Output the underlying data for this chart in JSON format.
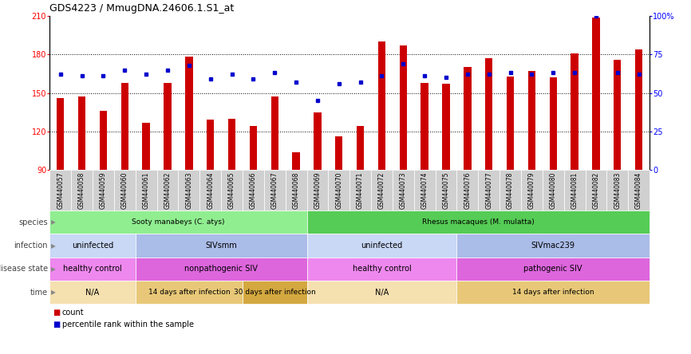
{
  "title": "GDS4223 / MmugDNA.24606.1.S1_at",
  "samples": [
    "GSM440057",
    "GSM440058",
    "GSM440059",
    "GSM440060",
    "GSM440061",
    "GSM440062",
    "GSM440063",
    "GSM440064",
    "GSM440065",
    "GSM440066",
    "GSM440067",
    "GSM440068",
    "GSM440069",
    "GSM440070",
    "GSM440071",
    "GSM440072",
    "GSM440073",
    "GSM440074",
    "GSM440075",
    "GSM440076",
    "GSM440077",
    "GSM440078",
    "GSM440079",
    "GSM440080",
    "GSM440081",
    "GSM440082",
    "GSM440083",
    "GSM440084"
  ],
  "counts": [
    146,
    147,
    136,
    158,
    127,
    158,
    178,
    129,
    130,
    124,
    147,
    104,
    135,
    116,
    124,
    190,
    187,
    158,
    157,
    170,
    177,
    163,
    167,
    162,
    181,
    209,
    176,
    184
  ],
  "percentiles": [
    62,
    61,
    61,
    65,
    62,
    65,
    68,
    59,
    62,
    59,
    63,
    57,
    45,
    56,
    57,
    61,
    69,
    61,
    60,
    62,
    62,
    63,
    62,
    63,
    63,
    100,
    63,
    62
  ],
  "ymin": 90,
  "ymax": 210,
  "yticks_left": [
    90,
    120,
    150,
    180,
    210
  ],
  "bar_color": "#cc0000",
  "dot_color": "#0000cc",
  "chart_bg": "#ffffff",
  "xtick_bg": "#d0d0d0",
  "species_blocks": [
    {
      "label": "Sooty manabeys (C. atys)",
      "start": 0,
      "end": 12,
      "color": "#90ee90"
    },
    {
      "label": "Rhesus macaques (M. mulatta)",
      "start": 12,
      "end": 28,
      "color": "#55cc55"
    }
  ],
  "infection_blocks": [
    {
      "label": "uninfected",
      "start": 0,
      "end": 4,
      "color": "#c8d8f5"
    },
    {
      "label": "SIVsmm",
      "start": 4,
      "end": 12,
      "color": "#aabce8"
    },
    {
      "label": "uninfected",
      "start": 12,
      "end": 19,
      "color": "#c8d8f5"
    },
    {
      "label": "SIVmac239",
      "start": 19,
      "end": 28,
      "color": "#aabce8"
    }
  ],
  "disease_blocks": [
    {
      "label": "healthy control",
      "start": 0,
      "end": 4,
      "color": "#ee88ee"
    },
    {
      "label": "nonpathogenic SIV",
      "start": 4,
      "end": 12,
      "color": "#dd66dd"
    },
    {
      "label": "healthy control",
      "start": 12,
      "end": 19,
      "color": "#ee88ee"
    },
    {
      "label": "pathogenic SIV",
      "start": 19,
      "end": 28,
      "color": "#dd66dd"
    }
  ],
  "time_blocks": [
    {
      "label": "N/A",
      "start": 0,
      "end": 4,
      "color": "#f5e0b0"
    },
    {
      "label": "14 days after infection",
      "start": 4,
      "end": 9,
      "color": "#e8c878"
    },
    {
      "label": "30 days after infection",
      "start": 9,
      "end": 12,
      "color": "#d4a840"
    },
    {
      "label": "N/A",
      "start": 12,
      "end": 19,
      "color": "#f5e0b0"
    },
    {
      "label": "14 days after infection",
      "start": 19,
      "end": 28,
      "color": "#e8c878"
    }
  ],
  "row_labels": [
    "species",
    "infection",
    "disease state",
    "time"
  ]
}
